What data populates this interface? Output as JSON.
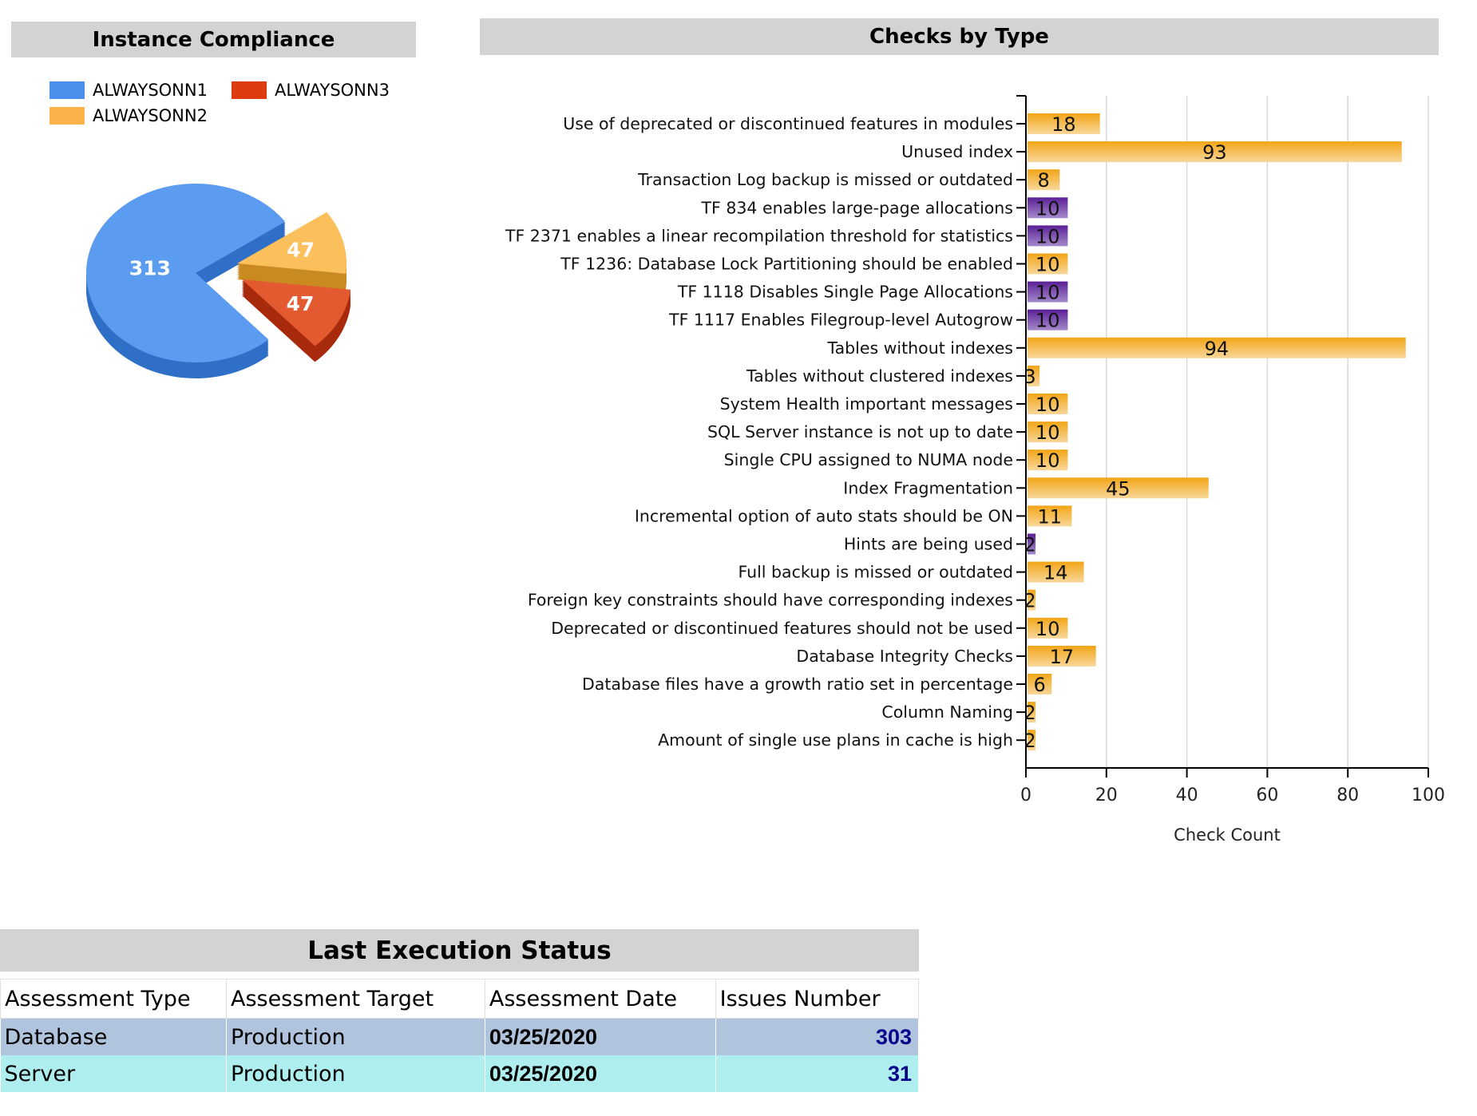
{
  "instance_compliance": {
    "title": "Instance Compliance",
    "legend": [
      {
        "label": "ALWAYSONN1",
        "color": "#5599ee"
      },
      {
        "label": "ALWAYSONN3",
        "color": "#dd4422"
      },
      {
        "label": "ALWAYSONN2",
        "color": "#f8bb55"
      }
    ]
  },
  "checks_by_type": {
    "title": "Checks by Type"
  },
  "last_execution_status": {
    "title": "Last Execution Status",
    "headers": [
      "Assessment Type",
      "Assessment Target",
      "Assessment Date",
      "Issues Number"
    ],
    "rows": [
      {
        "type": "Database",
        "target": "Production",
        "date": "03/25/2020",
        "issues": "303"
      },
      {
        "type": "Server",
        "target": "Production",
        "date": "03/25/2020",
        "issues": "31"
      }
    ]
  },
  "chart_data": [
    {
      "type": "pie",
      "title": "Instance Compliance",
      "slices": [
        {
          "label": "ALWAYSONN1",
          "value": 313,
          "color": "#5599ee"
        },
        {
          "label": "ALWAYSONN2",
          "value": 47,
          "color": "#f8bb55"
        },
        {
          "label": "ALWAYSONN3",
          "value": 47,
          "color": "#dd4422"
        }
      ],
      "legend": "top"
    },
    {
      "type": "bar",
      "orientation": "horizontal",
      "title": "Checks by Type",
      "xlabel": "Check Count",
      "ylabel": "",
      "xlim": [
        0,
        100
      ],
      "xticks": [
        0,
        20,
        40,
        60,
        80,
        100
      ],
      "grid": true,
      "categories": [
        "Use of deprecated or discontinued features in modules",
        "Unused index",
        "Transaction Log backup is missed or outdated",
        "TF 834 enables large-page allocations",
        "TF 2371 enables a linear recompilation threshold for statistics",
        "TF 1236: Database Lock Partitioning should be enabled",
        "TF 1118 Disables Single Page Allocations",
        "TF 1117 Enables Filegroup-level Autogrow",
        "Tables without indexes",
        "Tables without clustered indexes",
        "System Health important messages",
        "SQL Server instance is not up to date",
        "Single CPU assigned to NUMA node",
        "Index Fragmentation",
        "Incremental option of auto stats should be ON",
        "Hints are being used",
        "Full backup is missed or outdated",
        "Foreign key constraints should have corresponding indexes",
        "Deprecated or discontinued features should not be used",
        "Database Integrity Checks",
        "Database files have a growth ratio set in percentage",
        "Column Naming",
        "Amount of single use plans in cache is high"
      ],
      "values": [
        18,
        93,
        8,
        10,
        10,
        10,
        10,
        10,
        94,
        3,
        10,
        10,
        10,
        45,
        11,
        2,
        14,
        2,
        10,
        17,
        6,
        2,
        2
      ],
      "colors": [
        "orange",
        "orange",
        "orange",
        "purple",
        "purple",
        "orange",
        "purple",
        "purple",
        "orange",
        "orange",
        "orange",
        "orange",
        "orange",
        "orange",
        "orange",
        "purple",
        "orange",
        "orange",
        "orange",
        "orange",
        "orange",
        "orange",
        "orange"
      ],
      "palette": {
        "orange": "#f5a623",
        "purple": "#6a2fa0"
      }
    }
  ]
}
